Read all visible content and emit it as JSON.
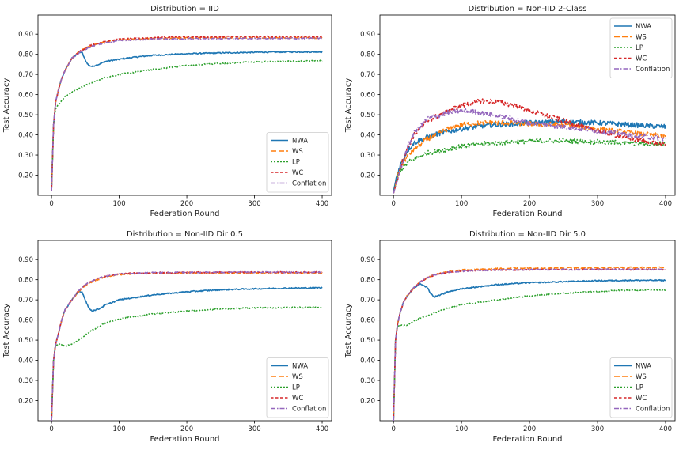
{
  "figure": {
    "series_styles": [
      {
        "name": "NWA",
        "color": "#1f77b4",
        "dash": ""
      },
      {
        "name": "WS",
        "color": "#ff7f0e",
        "dash": "7,3"
      },
      {
        "name": "LP",
        "color": "#2ca02c",
        "dash": "2,2"
      },
      {
        "name": "WC",
        "color": "#d62728",
        "dash": "3.5,2.5"
      },
      {
        "name": "Conflation",
        "color": "#9467bd",
        "dash": "6,2,1.5,2"
      }
    ]
  },
  "chart_data": [
    {
      "type": "line",
      "title": "Distribution = IID",
      "xlabel": "Federation Round",
      "ylabel": "Test Accuracy",
      "xlim": [
        -20,
        414
      ],
      "ylim": [
        0.1,
        0.995
      ],
      "xticks": [
        0,
        100,
        200,
        300,
        400
      ],
      "yticks": [
        "0.20",
        "0.30",
        "0.40",
        "0.50",
        "0.60",
        "0.70",
        "0.80",
        "0.90"
      ],
      "legend": "lower-right",
      "noise": 0.003,
      "series": [
        {
          "name": "NWA",
          "x": [
            0,
            3,
            6,
            10,
            15,
            20,
            30,
            40,
            45,
            50,
            55,
            60,
            70,
            80,
            100,
            120,
            150,
            200,
            250,
            300,
            350,
            400
          ],
          "y": [
            0.12,
            0.45,
            0.56,
            0.62,
            0.68,
            0.72,
            0.78,
            0.81,
            0.81,
            0.77,
            0.745,
            0.74,
            0.75,
            0.765,
            0.775,
            0.785,
            0.795,
            0.803,
            0.807,
            0.81,
            0.812,
            0.812
          ]
        },
        {
          "name": "WS",
          "x": [
            0,
            3,
            6,
            10,
            15,
            20,
            30,
            40,
            50,
            60,
            80,
            100,
            150,
            200,
            300,
            400
          ],
          "y": [
            0.12,
            0.45,
            0.56,
            0.62,
            0.68,
            0.72,
            0.78,
            0.81,
            0.83,
            0.845,
            0.862,
            0.872,
            0.879,
            0.881,
            0.882,
            0.882
          ]
        },
        {
          "name": "LP",
          "x": [
            0,
            3,
            6,
            10,
            15,
            20,
            30,
            40,
            60,
            80,
            100,
            150,
            200,
            250,
            300,
            350,
            400
          ],
          "y": [
            0.12,
            0.45,
            0.53,
            0.55,
            0.57,
            0.59,
            0.61,
            0.63,
            0.66,
            0.685,
            0.7,
            0.725,
            0.745,
            0.755,
            0.762,
            0.766,
            0.768
          ]
        },
        {
          "name": "WC",
          "x": [
            0,
            3,
            6,
            10,
            15,
            20,
            30,
            40,
            50,
            60,
            80,
            100,
            150,
            200,
            300,
            400
          ],
          "y": [
            0.12,
            0.45,
            0.56,
            0.62,
            0.68,
            0.72,
            0.78,
            0.81,
            0.832,
            0.848,
            0.865,
            0.875,
            0.883,
            0.886,
            0.888,
            0.888
          ]
        },
        {
          "name": "Conflation",
          "x": [
            0,
            3,
            6,
            10,
            15,
            20,
            30,
            40,
            50,
            60,
            80,
            100,
            150,
            200,
            300,
            400
          ],
          "y": [
            0.12,
            0.45,
            0.56,
            0.62,
            0.68,
            0.72,
            0.78,
            0.805,
            0.825,
            0.84,
            0.858,
            0.868,
            0.876,
            0.878,
            0.879,
            0.879
          ]
        }
      ]
    },
    {
      "type": "line",
      "title": "Distribution = Non-IID 2-Class",
      "xlabel": "Federation Round",
      "ylabel": "Test Accuracy",
      "xlim": [
        -20,
        414
      ],
      "ylim": [
        0.1,
        0.995
      ],
      "xticks": [
        0,
        100,
        200,
        300,
        400
      ],
      "yticks": [
        "0.20",
        "0.30",
        "0.40",
        "0.50",
        "0.60",
        "0.70",
        "0.80",
        "0.90"
      ],
      "legend": "upper-right",
      "noise": 0.012,
      "series": [
        {
          "name": "NWA",
          "x": [
            0,
            5,
            10,
            20,
            30,
            50,
            70,
            100,
            130,
            150,
            180,
            200,
            250,
            300,
            350,
            400
          ],
          "y": [
            0.12,
            0.2,
            0.25,
            0.32,
            0.36,
            0.39,
            0.41,
            0.43,
            0.445,
            0.45,
            0.455,
            0.46,
            0.465,
            0.46,
            0.45,
            0.44
          ]
        },
        {
          "name": "WS",
          "x": [
            0,
            5,
            10,
            20,
            30,
            50,
            80,
            100,
            130,
            160,
            200,
            250,
            300,
            350,
            400
          ],
          "y": [
            0.11,
            0.18,
            0.24,
            0.29,
            0.33,
            0.38,
            0.43,
            0.45,
            0.46,
            0.46,
            0.455,
            0.45,
            0.43,
            0.41,
            0.395
          ]
        },
        {
          "name": "LP",
          "x": [
            0,
            5,
            10,
            20,
            30,
            50,
            80,
            100,
            150,
            200,
            250,
            300,
            350,
            400
          ],
          "y": [
            0.11,
            0.18,
            0.22,
            0.26,
            0.28,
            0.31,
            0.33,
            0.345,
            0.36,
            0.37,
            0.37,
            0.365,
            0.36,
            0.355
          ]
        },
        {
          "name": "WC",
          "x": [
            0,
            5,
            10,
            20,
            30,
            50,
            80,
            100,
            130,
            150,
            180,
            200,
            250,
            300,
            350,
            400
          ],
          "y": [
            0.11,
            0.17,
            0.24,
            0.33,
            0.4,
            0.47,
            0.52,
            0.545,
            0.57,
            0.565,
            0.545,
            0.52,
            0.47,
            0.42,
            0.38,
            0.35
          ]
        },
        {
          "name": "Conflation",
          "x": [
            0,
            5,
            10,
            20,
            30,
            50,
            80,
            100,
            130,
            160,
            200,
            250,
            300,
            350,
            400
          ],
          "y": [
            0.11,
            0.17,
            0.23,
            0.33,
            0.41,
            0.48,
            0.51,
            0.52,
            0.51,
            0.49,
            0.46,
            0.44,
            0.42,
            0.4,
            0.38
          ]
        }
      ]
    },
    {
      "type": "line",
      "title": "Distribution = Non-IID Dir 0.5",
      "xlabel": "Federation Round",
      "ylabel": "Test Accuracy",
      "xlim": [
        -20,
        414
      ],
      "ylim": [
        0.1,
        0.995
      ],
      "xticks": [
        0,
        100,
        200,
        300,
        400
      ],
      "yticks": [
        "0.20",
        "0.30",
        "0.40",
        "0.50",
        "0.60",
        "0.70",
        "0.80",
        "0.90"
      ],
      "legend": "lower-right",
      "noise": 0.003,
      "series": [
        {
          "name": "NWA",
          "x": [
            0,
            3,
            6,
            10,
            15,
            20,
            30,
            40,
            45,
            50,
            55,
            60,
            70,
            80,
            100,
            150,
            200,
            250,
            300,
            350,
            400
          ],
          "y": [
            0.1,
            0.4,
            0.48,
            0.53,
            0.6,
            0.65,
            0.7,
            0.74,
            0.74,
            0.7,
            0.66,
            0.645,
            0.655,
            0.675,
            0.7,
            0.725,
            0.74,
            0.75,
            0.755,
            0.758,
            0.76
          ]
        },
        {
          "name": "WS",
          "x": [
            0,
            3,
            6,
            10,
            15,
            20,
            30,
            40,
            50,
            60,
            80,
            100,
            120,
            150,
            200,
            300,
            400
          ],
          "y": [
            0.1,
            0.4,
            0.48,
            0.53,
            0.6,
            0.65,
            0.7,
            0.74,
            0.77,
            0.79,
            0.815,
            0.825,
            0.83,
            0.832,
            0.833,
            0.834,
            0.834
          ]
        },
        {
          "name": "LP",
          "x": [
            0,
            3,
            6,
            10,
            15,
            20,
            25,
            30,
            40,
            50,
            60,
            80,
            100,
            150,
            200,
            250,
            300,
            350,
            400
          ],
          "y": [
            0.1,
            0.4,
            0.47,
            0.48,
            0.475,
            0.47,
            0.475,
            0.48,
            0.5,
            0.525,
            0.55,
            0.585,
            0.605,
            0.63,
            0.645,
            0.655,
            0.66,
            0.662,
            0.662
          ]
        },
        {
          "name": "WC",
          "x": [
            0,
            3,
            6,
            10,
            15,
            20,
            30,
            40,
            50,
            60,
            80,
            100,
            120,
            150,
            200,
            300,
            400
          ],
          "y": [
            0.1,
            0.4,
            0.48,
            0.53,
            0.6,
            0.65,
            0.7,
            0.745,
            0.775,
            0.795,
            0.818,
            0.828,
            0.832,
            0.835,
            0.836,
            0.837,
            0.837
          ]
        },
        {
          "name": "Conflation",
          "x": [
            0,
            3,
            6,
            10,
            15,
            20,
            30,
            40,
            50,
            60,
            80,
            100,
            120,
            150,
            200,
            300,
            400
          ],
          "y": [
            0.1,
            0.4,
            0.48,
            0.53,
            0.6,
            0.65,
            0.7,
            0.745,
            0.775,
            0.795,
            0.818,
            0.828,
            0.832,
            0.835,
            0.836,
            0.837,
            0.837
          ]
        }
      ]
    },
    {
      "type": "line",
      "title": "Distribution = Non-IID Dir 5.0",
      "xlabel": "Federation Round",
      "ylabel": "Test Accuracy",
      "xlim": [
        -20,
        414
      ],
      "ylim": [
        0.1,
        0.995
      ],
      "xticks": [
        0,
        100,
        200,
        300,
        400
      ],
      "yticks": [
        "0.20",
        "0.30",
        "0.40",
        "0.50",
        "0.60",
        "0.70",
        "0.80",
        "0.90"
      ],
      "legend": "lower-right",
      "noise": 0.003,
      "series": [
        {
          "name": "NWA",
          "x": [
            0,
            3,
            6,
            10,
            15,
            20,
            30,
            40,
            50,
            55,
            60,
            70,
            80,
            100,
            150,
            200,
            250,
            300,
            350,
            400
          ],
          "y": [
            0.1,
            0.5,
            0.58,
            0.64,
            0.69,
            0.72,
            0.76,
            0.78,
            0.76,
            0.73,
            0.715,
            0.725,
            0.74,
            0.755,
            0.775,
            0.785,
            0.79,
            0.795,
            0.797,
            0.797
          ]
        },
        {
          "name": "WS",
          "x": [
            0,
            3,
            6,
            10,
            15,
            20,
            30,
            40,
            50,
            60,
            80,
            100,
            150,
            200,
            300,
            400
          ],
          "y": [
            0.1,
            0.5,
            0.58,
            0.64,
            0.69,
            0.72,
            0.76,
            0.79,
            0.81,
            0.825,
            0.84,
            0.848,
            0.855,
            0.858,
            0.86,
            0.861
          ]
        },
        {
          "name": "LP",
          "x": [
            0,
            3,
            6,
            10,
            15,
            20,
            25,
            30,
            40,
            60,
            80,
            100,
            150,
            200,
            250,
            300,
            350,
            400
          ],
          "y": [
            0.1,
            0.5,
            0.57,
            0.575,
            0.575,
            0.575,
            0.585,
            0.595,
            0.61,
            0.635,
            0.66,
            0.675,
            0.7,
            0.72,
            0.733,
            0.742,
            0.748,
            0.75
          ]
        },
        {
          "name": "WC",
          "x": [
            0,
            3,
            6,
            10,
            15,
            20,
            30,
            40,
            50,
            60,
            80,
            100,
            150,
            200,
            300,
            400
          ],
          "y": [
            0.1,
            0.5,
            0.58,
            0.64,
            0.69,
            0.72,
            0.76,
            0.79,
            0.81,
            0.823,
            0.837,
            0.843,
            0.848,
            0.85,
            0.851,
            0.851
          ]
        },
        {
          "name": "Conflation",
          "x": [
            0,
            3,
            6,
            10,
            15,
            20,
            30,
            40,
            50,
            60,
            80,
            100,
            150,
            200,
            300,
            400
          ],
          "y": [
            0.1,
            0.5,
            0.58,
            0.64,
            0.69,
            0.72,
            0.76,
            0.79,
            0.81,
            0.823,
            0.837,
            0.843,
            0.848,
            0.85,
            0.851,
            0.851
          ]
        }
      ]
    }
  ]
}
